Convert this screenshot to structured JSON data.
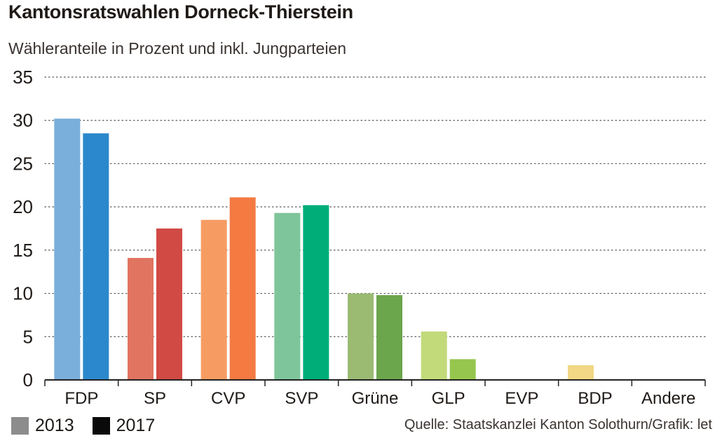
{
  "chart_data": {
    "type": "bar",
    "title": "Kantonsratswahlen Dorneck-Thierstein",
    "subtitle": "Wähleranteile in Prozent und inkl. Jungparteien",
    "categories": [
      "FDP",
      "SP",
      "CVP",
      "SVP",
      "Grüne",
      "GLP",
      "EVP",
      "BDP",
      "Andere"
    ],
    "series": [
      {
        "name": "2013",
        "values": [
          30.2,
          14.1,
          18.5,
          19.3,
          10.0,
          5.6,
          0,
          1.7,
          0
        ],
        "colors": [
          "#7aaedb",
          "#e07461",
          "#f69c63",
          "#7fc59b",
          "#9bbb73",
          "#c2da7a",
          "#cccccc",
          "#f2d785",
          "#cccccc"
        ]
      },
      {
        "name": "2017",
        "values": [
          28.5,
          17.5,
          21.1,
          20.2,
          9.8,
          2.4,
          0,
          0,
          0
        ],
        "colors": [
          "#2b88cc",
          "#d14a44",
          "#f47a42",
          "#00ad79",
          "#6ba54c",
          "#96c64e",
          "#aaaaaa",
          "#ecc85a",
          "#aaaaaa"
        ]
      }
    ],
    "yticks": [
      0,
      5,
      10,
      15,
      20,
      25,
      30,
      35
    ],
    "ylim": [
      0,
      35
    ],
    "grid": true
  },
  "legend": [
    {
      "label": "2013",
      "color": "#8c8c8c"
    },
    {
      "label": "2017",
      "color": "#0a0a0a"
    }
  ],
  "source": "Quelle: Staatskanzlei Kanton Solothurn/Grafik: let"
}
